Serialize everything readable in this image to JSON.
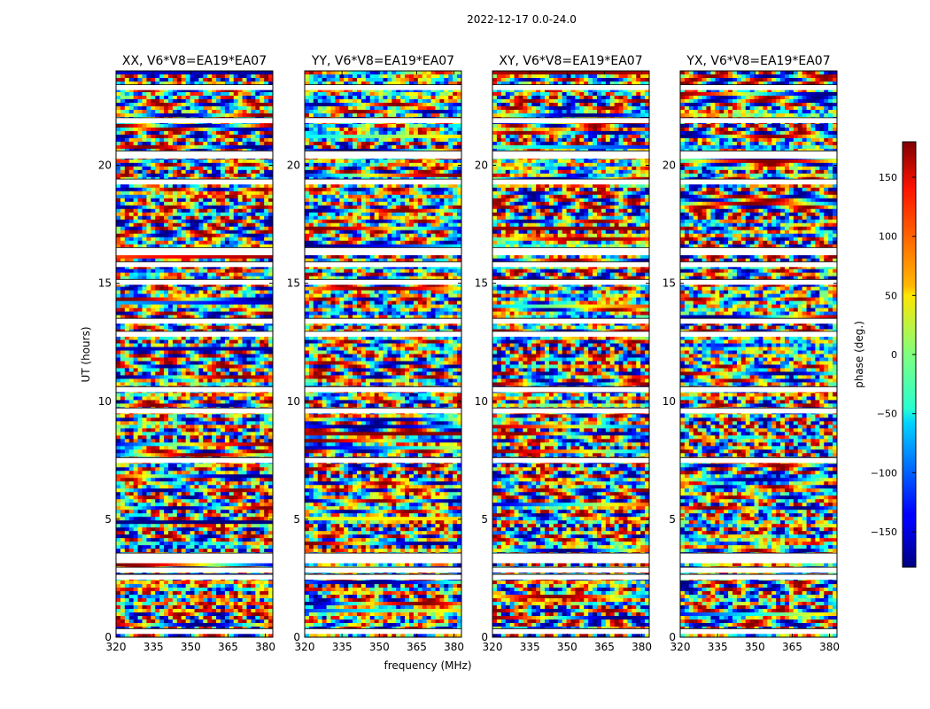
{
  "chart_data": {
    "type": "heatmap",
    "suptitle": "2022-12-17 0.0-24.0",
    "xlabel": "frequency (MHz)",
    "ylabel": "UT (hours)",
    "xlim": [
      320,
      383
    ],
    "ylim": [
      0,
      24
    ],
    "xticks": [
      320,
      335,
      350,
      365,
      380
    ],
    "yticks": [
      0,
      5,
      10,
      15,
      20
    ],
    "panels": [
      {
        "title": "XX, V6*V8=EA19*EA07"
      },
      {
        "title": "YY, V6*V8=EA19*EA07"
      },
      {
        "title": "XY, V6*V8=EA19*EA07"
      },
      {
        "title": "YX, V6*V8=EA19*EA07"
      }
    ],
    "colorbar": {
      "label": "phase (deg.)",
      "range": [
        -180,
        180
      ],
      "ticks": [
        -150,
        -100,
        -50,
        0,
        50,
        100,
        150
      ],
      "colormap": "jet"
    },
    "gaps_hours": [
      0.25,
      2.55,
      2.85,
      3.25,
      3.45,
      7.5,
      9.6,
      10.5,
      12.85,
      13.4,
      15.05,
      15.8,
      16.3,
      16.4,
      19.3,
      20.4,
      20.5,
      21.9,
      23.3
    ]
  }
}
